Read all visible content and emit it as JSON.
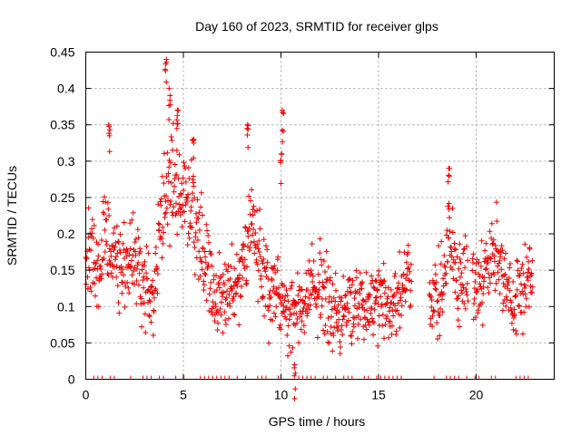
{
  "chart_data": {
    "type": "scatter",
    "title": "Day 160 of 2023, SRMTID for receiver glps",
    "xlabel": "GPS time / hours",
    "ylabel": "SRMTID / TECUs",
    "xlim": [
      0,
      24
    ],
    "ylim": [
      0,
      0.45
    ],
    "x_ticks": [
      0,
      5,
      10,
      15,
      20
    ],
    "y_ticks": [
      0,
      0.05,
      0.1,
      0.15,
      0.2,
      0.25,
      0.3,
      0.35,
      0.4,
      0.45
    ],
    "x_tick_labels": [
      "0",
      "5",
      "10",
      "15",
      "20"
    ],
    "y_tick_labels": [
      "0",
      "0.05",
      "0.1",
      "0.15",
      "0.2",
      "0.25",
      "0.3",
      "0.35",
      "0.4",
      "0.45"
    ],
    "grid": true,
    "marker": "+",
    "color": "#ee0000",
    "gap_intervals_hours": [
      [
        16.7,
        17.6
      ],
      [
        19.6,
        19.8
      ],
      [
        22.9,
        24.0
      ]
    ],
    "trend": {
      "x": [
        0.0,
        0.5,
        1.0,
        1.5,
        2.0,
        2.5,
        3.0,
        3.5,
        4.0,
        4.5,
        5.0,
        5.5,
        6.0,
        6.5,
        7.0,
        7.5,
        8.0,
        8.5,
        9.0,
        9.5,
        10.0,
        10.5,
        11.0,
        11.5,
        12.0,
        12.5,
        13.0,
        13.5,
        14.0,
        14.5,
        15.0,
        15.5,
        16.0,
        16.5,
        17.8,
        18.2,
        18.6,
        19.0,
        19.5,
        20.0,
        20.5,
        21.0,
        21.3,
        21.6,
        22.0,
        22.5,
        22.9
      ],
      "y": [
        0.17,
        0.16,
        0.2,
        0.17,
        0.15,
        0.16,
        0.13,
        0.12,
        0.25,
        0.27,
        0.25,
        0.24,
        0.18,
        0.12,
        0.11,
        0.12,
        0.14,
        0.2,
        0.16,
        0.11,
        0.12,
        0.08,
        0.1,
        0.12,
        0.13,
        0.1,
        0.09,
        0.1,
        0.09,
        0.1,
        0.11,
        0.12,
        0.11,
        0.14,
        0.1,
        0.12,
        0.2,
        0.13,
        0.14,
        0.12,
        0.14,
        0.19,
        0.15,
        0.11,
        0.1,
        0.13,
        0.15
      ]
    },
    "spikes": [
      {
        "x": 1.2,
        "y": 0.35
      },
      {
        "x": 4.1,
        "y": 0.44
      },
      {
        "x": 4.3,
        "y": 0.4
      },
      {
        "x": 4.7,
        "y": 0.37
      },
      {
        "x": 5.5,
        "y": 0.33
      },
      {
        "x": 8.3,
        "y": 0.35
      },
      {
        "x": 10.1,
        "y": 0.37
      },
      {
        "x": 10.0,
        "y": 0.31
      },
      {
        "x": 18.6,
        "y": 0.29
      },
      {
        "x": 10.7,
        "y": 0.02
      }
    ]
  }
}
